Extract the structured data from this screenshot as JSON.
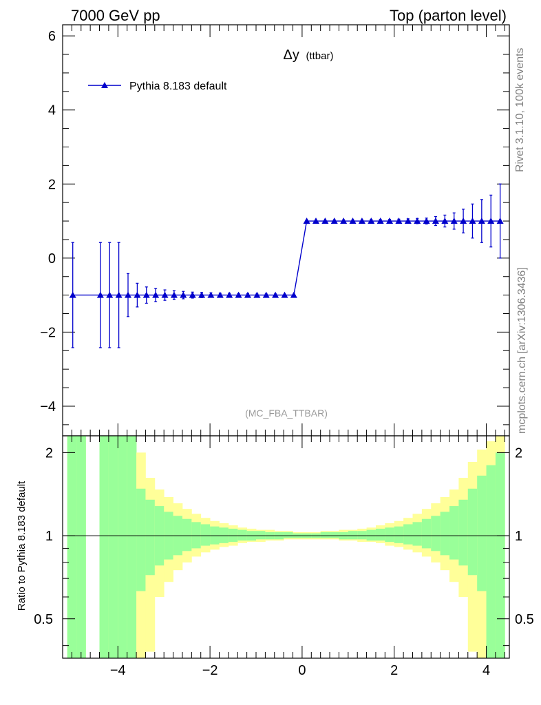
{
  "header": {
    "left": "7000 GeV pp",
    "right": "Top (parton level)"
  },
  "side_labels": {
    "rivet": "Rivet 3.1.10,  100k events",
    "source": "mcplots.cern.ch [arXiv:1306.3436]"
  },
  "colors": {
    "series": "#0000cc",
    "band_inner": "#99ff99",
    "band_outer": "#ffff99",
    "axis": "#000000",
    "muted_text": "#999999"
  },
  "chart_data": [
    {
      "type": "line",
      "title_symbol": "Δy",
      "title_suffix": "(ttbar)",
      "analysis_label": "(MC_FBA_TTBAR)",
      "xlabel": "",
      "ylabel": "",
      "xlim": [
        -5.2,
        4.5
      ],
      "ylim": [
        -4.8,
        6.3
      ],
      "y_major_ticks": [
        -4,
        -2,
        0,
        2,
        4,
        6
      ],
      "y_tick_labels": [
        "−4",
        "−2",
        "0",
        "2",
        "4",
        "6"
      ],
      "legend": {
        "label": "Pythia 8.183 default",
        "position": "top-left"
      },
      "series": [
        {
          "name": "Pythia 8.183 default",
          "x": [
            -4.98,
            -4.38,
            -4.18,
            -3.98,
            -3.78,
            -3.58,
            -3.38,
            -3.18,
            -2.98,
            -2.78,
            -2.58,
            -2.38,
            -2.18,
            -1.98,
            -1.78,
            -1.58,
            -1.38,
            -1.18,
            -0.98,
            -0.78,
            -0.58,
            -0.38,
            -0.18,
            0.1,
            0.3,
            0.5,
            0.7,
            0.9,
            1.1,
            1.3,
            1.5,
            1.7,
            1.9,
            2.1,
            2.3,
            2.5,
            2.7,
            2.9,
            3.1,
            3.3,
            3.5,
            3.7,
            3.9,
            4.1,
            4.3
          ],
          "y": [
            -1,
            -1,
            -1,
            -1,
            -1,
            -1,
            -1,
            -1,
            -1,
            -1,
            -1,
            -1,
            -1,
            -1,
            -1,
            -1,
            -1,
            -1,
            -1,
            -1,
            -1,
            -1,
            -1,
            1,
            1,
            1,
            1,
            1,
            1,
            1,
            1,
            1,
            1,
            1,
            1,
            1,
            1,
            1,
            1,
            1,
            1,
            1,
            1,
            1,
            1
          ],
          "err": [
            1.42,
            1.42,
            1.42,
            1.42,
            0.58,
            0.32,
            0.22,
            0.18,
            0.14,
            0.12,
            0.1,
            0.08,
            0.07,
            0.06,
            0.05,
            0.05,
            0.04,
            0.04,
            0.03,
            0.03,
            0.03,
            0.02,
            0.02,
            0.02,
            0.02,
            0.02,
            0.03,
            0.03,
            0.03,
            0.03,
            0.04,
            0.04,
            0.04,
            0.05,
            0.06,
            0.07,
            0.08,
            0.12,
            0.16,
            0.22,
            0.32,
            0.46,
            0.58,
            0.7,
            1.0
          ]
        }
      ]
    },
    {
      "type": "area",
      "title": "",
      "xlabel": "",
      "ylabel": "Ratio to Pythia 8.183 default",
      "xlim": [
        -5.2,
        4.5
      ],
      "ylim": [
        0.36,
        2.3
      ],
      "y_major_ticks": [
        0.5,
        1,
        2
      ],
      "y_tick_labels": [
        "0.5",
        "1",
        "2"
      ],
      "x_major_ticks": [
        -4,
        -2,
        0,
        2,
        4
      ],
      "x_tick_labels": [
        "−4",
        "−2",
        "0",
        "2",
        "4"
      ],
      "reference_line": 1,
      "bands": {
        "bin_edges": [
          -5.1,
          -4.9,
          -4.7,
          -4.5,
          -4.4,
          -4.2,
          -4.0,
          -3.8,
          -3.6,
          -3.4,
          -3.2,
          -3.0,
          -2.8,
          -2.6,
          -2.4,
          -2.2,
          -2.0,
          -1.8,
          -1.6,
          -1.4,
          -1.2,
          -1.0,
          -0.8,
          -0.6,
          -0.4,
          -0.2,
          0.0,
          0.2,
          0.4,
          0.6,
          0.8,
          1.0,
          1.2,
          1.4,
          1.6,
          1.8,
          2.0,
          2.2,
          2.4,
          2.6,
          2.8,
          3.0,
          3.2,
          3.4,
          3.6,
          3.8,
          4.0,
          4.2,
          4.4
        ],
        "inner_lo": [
          0.3,
          0.3,
          null,
          null,
          0.3,
          0.3,
          0.3,
          0.3,
          0.63,
          0.72,
          0.78,
          0.82,
          0.85,
          0.88,
          0.9,
          0.92,
          0.93,
          0.94,
          0.95,
          0.96,
          0.96,
          0.97,
          0.97,
          0.97,
          0.98,
          0.98,
          0.98,
          0.98,
          0.98,
          0.98,
          0.97,
          0.97,
          0.97,
          0.96,
          0.96,
          0.95,
          0.94,
          0.93,
          0.92,
          0.9,
          0.88,
          0.85,
          0.82,
          0.78,
          0.72,
          0.63,
          0.3,
          0.3
        ],
        "inner_hi": [
          2.3,
          2.3,
          null,
          null,
          2.3,
          2.3,
          2.3,
          2.3,
          1.48,
          1.35,
          1.28,
          1.22,
          1.18,
          1.15,
          1.12,
          1.1,
          1.08,
          1.07,
          1.06,
          1.05,
          1.04,
          1.04,
          1.03,
          1.03,
          1.03,
          1.02,
          1.02,
          1.02,
          1.03,
          1.03,
          1.03,
          1.04,
          1.04,
          1.05,
          1.06,
          1.07,
          1.08,
          1.1,
          1.12,
          1.15,
          1.18,
          1.22,
          1.28,
          1.35,
          1.48,
          1.65,
          1.8,
          2.0
        ],
        "outer_lo": [
          0.3,
          0.3,
          null,
          null,
          0.3,
          0.3,
          0.3,
          0.3,
          0.3,
          0.38,
          0.6,
          0.68,
          0.75,
          0.8,
          0.84,
          0.87,
          0.89,
          0.91,
          0.92,
          0.94,
          0.95,
          0.95,
          0.96,
          0.96,
          0.97,
          0.97,
          0.97,
          0.97,
          0.97,
          0.97,
          0.96,
          0.96,
          0.95,
          0.95,
          0.94,
          0.92,
          0.91,
          0.89,
          0.87,
          0.84,
          0.8,
          0.75,
          0.68,
          0.6,
          0.38,
          0.3,
          0.3,
          0.3
        ],
        "outer_hi": [
          2.3,
          2.3,
          null,
          null,
          2.3,
          2.3,
          2.3,
          2.3,
          2.0,
          1.62,
          1.47,
          1.38,
          1.31,
          1.25,
          1.2,
          1.16,
          1.13,
          1.11,
          1.09,
          1.07,
          1.06,
          1.05,
          1.05,
          1.04,
          1.04,
          1.03,
          1.03,
          1.03,
          1.04,
          1.04,
          1.05,
          1.05,
          1.06,
          1.07,
          1.09,
          1.11,
          1.13,
          1.16,
          1.2,
          1.25,
          1.31,
          1.38,
          1.47,
          1.62,
          1.85,
          2.05,
          2.2,
          2.3
        ]
      }
    }
  ]
}
